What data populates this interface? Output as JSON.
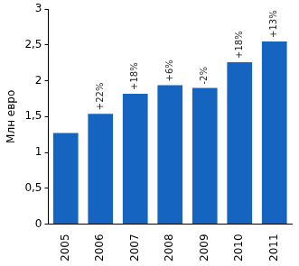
{
  "chart_data": {
    "type": "bar",
    "y_label": "Млн евро",
    "categories": [
      "2005",
      "2006",
      "2007",
      "2008",
      "2009",
      "2010",
      "2011"
    ],
    "values": [
      1.27,
      1.54,
      1.82,
      1.94,
      1.9,
      2.26,
      2.55
    ],
    "color": "#1565c0",
    "ylim": [
      0,
      3
    ],
    "yticks": [
      0,
      {
        "value": 0.5,
        "label": "0,5"
      },
      1,
      {
        "value": 1.5,
        "label": "1,5"
      },
      2,
      {
        "value": 2.5,
        "label": "2,5"
      },
      3
    ],
    "grid": false,
    "annotations": [
      {
        "category": "2006",
        "text": "+22%"
      },
      {
        "category": "2007",
        "text": "+18%"
      },
      {
        "category": "2008",
        "text": "+6%"
      },
      {
        "category": "2009",
        "text": "-2%"
      },
      {
        "category": "2010",
        "text": "+18%"
      },
      {
        "category": "2011",
        "text": "+13%"
      }
    ]
  }
}
